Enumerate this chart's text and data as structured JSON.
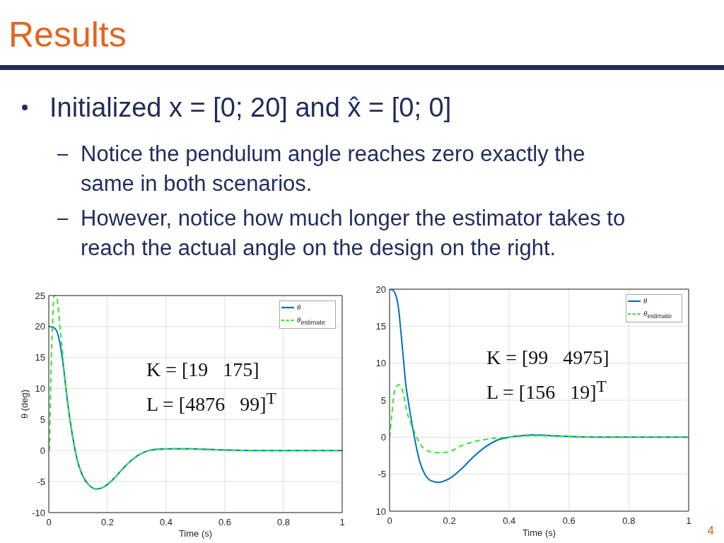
{
  "chart_data": [
    {
      "type": "line",
      "title": "Results",
      "subtitle": "Initialized x = [0; 20] and x̂ = [0; 0]",
      "xlabel": "Time (s)",
      "ylabel": "θ (deg)",
      "annotations": [
        "K = [19   175]",
        "L = [4876   99]$^{T}$",
        "Notice the pendulum angle reaches zero exactly the same in both scenarios.",
        "However, notice how much longer the estimator takes to reach the actual angle on the design on the right."
      ],
      "series": [
        {
          "name": "θ",
          "color": "#0072bd",
          "line_style": "solid",
          "x": [
            0,
            0.014,
            0.026,
            0.038,
            0.05,
            0.062,
            0.074,
            0.086,
            0.098,
            0.114,
            0.138,
            0.162,
            0.186,
            0.218,
            0.251,
            0.283,
            0.323,
            0.363,
            0.42,
            0.48,
            0.54,
            0.6,
            0.7,
            0.8,
            0.9,
            1
          ],
          "values": [
            20,
            19.9,
            19.4,
            17.3,
            13.5,
            8.6,
            4.4,
            1.0,
            -1.7,
            -3.9,
            -5.6,
            -6.2,
            -5.9,
            -4.7,
            -3.0,
            -1.5,
            -0.3,
            0.2,
            0.3,
            0.3,
            0.2,
            0.1,
            0,
            0,
            0,
            0
          ]
        },
        {
          "name": "θ$_{estimate}$",
          "color": "#33e633",
          "line_style": "dashed",
          "x": [
            0,
            0.002,
            0.006,
            0.01,
            0.014,
            0.018,
            0.026,
            0.032,
            0.038,
            0.046,
            0.054,
            0.062,
            0.074,
            0.086,
            0.098,
            0.114,
            0.138,
            0.162,
            0.186,
            0.218,
            0.251,
            0.283,
            0.323,
            0.363,
            0.42,
            0.48,
            0.54,
            0.6,
            0.7,
            0.8,
            0.9,
            1
          ],
          "values": [
            0,
            0.3,
            9.4,
            17,
            21.9,
            25,
            25,
            23,
            20,
            16.3,
            11.8,
            8.6,
            4.4,
            1.0,
            -1.7,
            -3.9,
            -5.6,
            -6.2,
            -5.9,
            -4.7,
            -3.0,
            -1.5,
            -0.3,
            0.2,
            0.3,
            0.3,
            0.2,
            0.1,
            0,
            0,
            0,
            0
          ]
        }
      ],
      "xlim": [
        0,
        1
      ],
      "xticks": [
        0,
        0.2,
        0.4,
        0.6,
        0.8,
        1
      ],
      "ylim": [
        -10,
        25
      ],
      "yticks": [
        -10,
        -5,
        0,
        5,
        10,
        15,
        20,
        25
      ],
      "grid": true,
      "legend": "top right",
      "marker": "none"
    },
    {
      "type": "line",
      "xlabel": "Time (s)",
      "annotations": [
        "K = [99   4975]",
        "L = [156   19]$^{T}$",
        "4"
      ],
      "series": [
        {
          "name": "θ",
          "color": "#0072bd",
          "line_style": "solid",
          "x": [
            0,
            0.01,
            0.02,
            0.03,
            0.038,
            0.046,
            0.054,
            0.062,
            0.072,
            0.083,
            0.092,
            0.101,
            0.118,
            0.14,
            0.164,
            0.2,
            0.24,
            0.282,
            0.321,
            0.36,
            0.4,
            0.44,
            0.48,
            0.55,
            0.6,
            0.7,
            0.8,
            0.9,
            1
          ],
          "values": [
            20,
            19.9,
            19.3,
            17.4,
            14.2,
            10.7,
            7.2,
            5.0,
            2.5,
            0,
            -1.8,
            -3.3,
            -5.0,
            -5.9,
            -6.1,
            -5.6,
            -4.3,
            -2.6,
            -1.3,
            -0.4,
            0,
            0.2,
            0.3,
            0.2,
            0.1,
            0,
            0,
            0,
            0
          ]
        },
        {
          "name": "θ$_{estimate}$",
          "color": "#33e633",
          "line_style": "dashed",
          "x": [
            0,
            0.006,
            0.014,
            0.022,
            0.032,
            0.046,
            0.057,
            0.069,
            0.081,
            0.093,
            0.109,
            0.132,
            0.164,
            0.195,
            0.243,
            0.282,
            0.321,
            0.36,
            0.4,
            0.48,
            0.6,
            0.7,
            0.8,
            0.9,
            1
          ],
          "values": [
            0,
            2.4,
            5.6,
            6.8,
            7.1,
            5.9,
            3.6,
            2.1,
            0.9,
            -0.2,
            -1.3,
            -1.9,
            -2.1,
            -2.0,
            -1.1,
            -0.6,
            -0.3,
            -0.1,
            0,
            0.2,
            0.1,
            0,
            0,
            0,
            0
          ]
        }
      ],
      "xlim": [
        0,
        1
      ],
      "xticks": [
        0,
        0.2,
        0.4,
        0.6,
        0.8,
        1
      ],
      "ylim": [
        -10,
        20
      ],
      "yticks": [
        {
          "value": -10,
          "label": "10"
        },
        -5,
        0,
        5,
        10,
        15,
        20
      ],
      "grid": true,
      "legend": "top right",
      "marker": "none"
    }
  ]
}
